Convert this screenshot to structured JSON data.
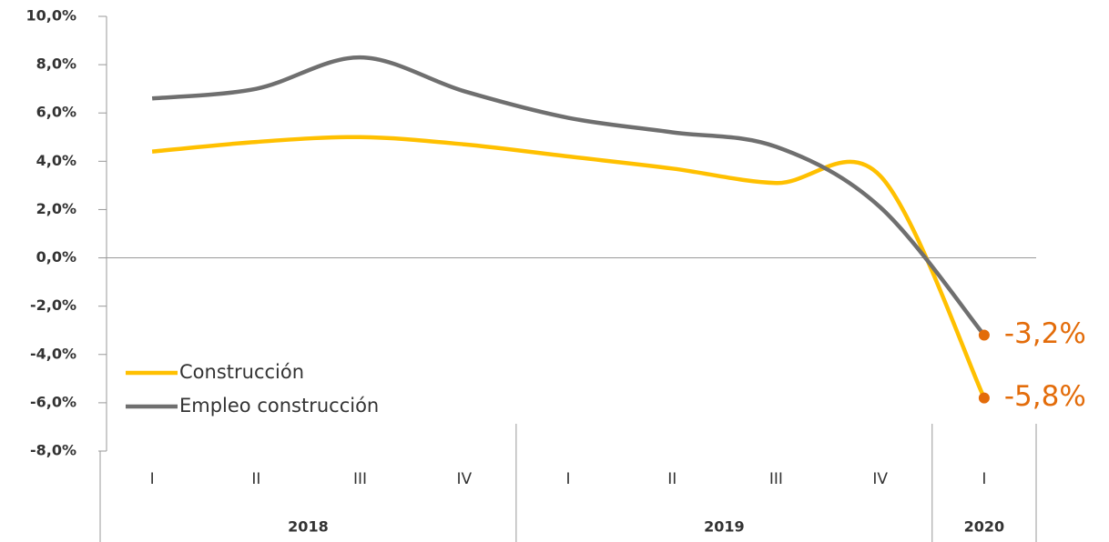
{
  "chart_data": {
    "type": "line",
    "groups": [
      {
        "label": "2018",
        "categories": [
          "I",
          "II",
          "III",
          "IV"
        ]
      },
      {
        "label": "2019",
        "categories": [
          "I",
          "II",
          "III",
          "IV"
        ]
      },
      {
        "label": "2020",
        "categories": [
          "I"
        ]
      }
    ],
    "series": [
      {
        "name": "Construcción",
        "color": "#ffc000",
        "values": [
          4.4,
          4.8,
          5.0,
          4.7,
          4.2,
          3.7,
          3.1,
          3.4,
          -5.8
        ],
        "value_labels": [
          null,
          null,
          null,
          null,
          null,
          null,
          null,
          null,
          "-5,8%"
        ]
      },
      {
        "name": "Empleo construcción",
        "color": "#6f6f6f",
        "values": [
          6.6,
          7.0,
          8.3,
          6.9,
          5.8,
          5.2,
          4.6,
          2.1,
          -3.2
        ],
        "value_labels": [
          null,
          null,
          null,
          null,
          null,
          null,
          null,
          null,
          "-3,2%"
        ]
      }
    ],
    "marker_color": "#e36c0a",
    "ylim": [
      -8,
      10
    ],
    "yticks": [
      {
        "value": -8,
        "label": "-8,0%"
      },
      {
        "value": -6,
        "label": "-6,0%"
      },
      {
        "value": -4,
        "label": "-4,0%"
      },
      {
        "value": -2,
        "label": "-2,0%"
      },
      {
        "value": 0,
        "label": "0,0%"
      },
      {
        "value": 2,
        "label": "2,0%"
      },
      {
        "value": 4,
        "label": "4,0%"
      },
      {
        "value": 6,
        "label": "6,0%"
      },
      {
        "value": 8,
        "label": "8,0%"
      },
      {
        "value": 10,
        "label": "10,0%"
      }
    ],
    "legend": "lower left"
  }
}
